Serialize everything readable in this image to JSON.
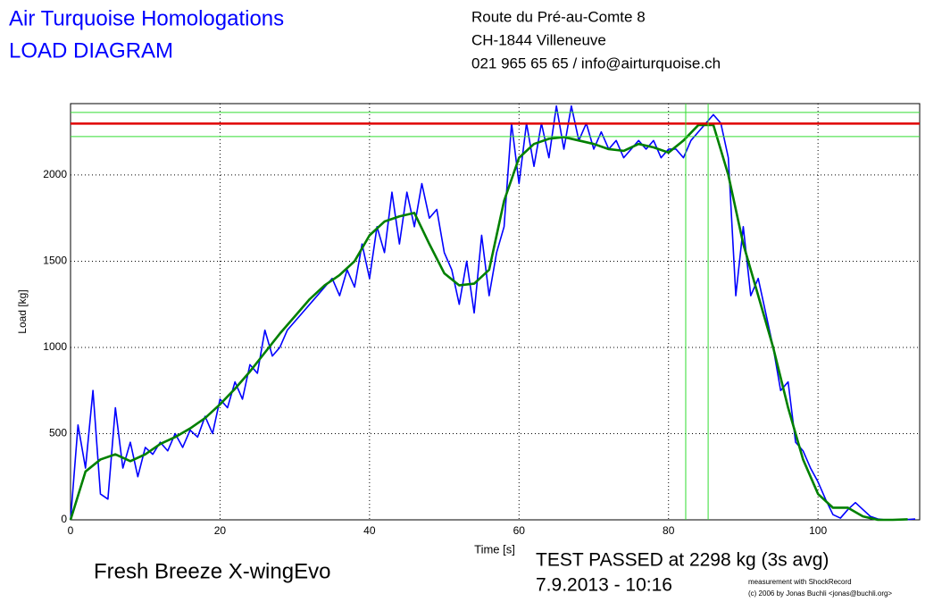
{
  "header": {
    "title": "Air Turquoise Homologations",
    "subtitle": "LOAD DIAGRAM",
    "address": [
      "Route du Pré-au-Comte 8",
      "CH-1844 Villeneuve",
      "021 965 65 65 / info@airturquoise.ch"
    ]
  },
  "chart_data": {
    "type": "line",
    "xlabel": "Time [s]",
    "ylabel": "Load [kg]",
    "xlim": [
      0,
      113.6
    ],
    "ylim": [
      0,
      2414
    ],
    "xticks": [
      0,
      20,
      40,
      60,
      80,
      100
    ],
    "yticks": [
      0,
      500,
      1000,
      1500,
      2000
    ],
    "grid": true,
    "series": [
      {
        "color": "#0000ff",
        "x": [
          0,
          1,
          2,
          3,
          4,
          5,
          6,
          7,
          8,
          9,
          10,
          11,
          12,
          13,
          14,
          15,
          16,
          17,
          18,
          19,
          20,
          21,
          22,
          23,
          24,
          25,
          26,
          27,
          28,
          29,
          30,
          31,
          32,
          33,
          34,
          35,
          36,
          37,
          38,
          39,
          40,
          41,
          42,
          43,
          44,
          45,
          46,
          47,
          48,
          49,
          50,
          51,
          52,
          53,
          54,
          55,
          56,
          57,
          58,
          59,
          60,
          61,
          62,
          63,
          64,
          65,
          66,
          67,
          68,
          69,
          70,
          71,
          72,
          73,
          74,
          75,
          76,
          77,
          78,
          79,
          80,
          81,
          82,
          83,
          84,
          85,
          86,
          87,
          88,
          89,
          90,
          91,
          92,
          93,
          94,
          95,
          96,
          97,
          98,
          99,
          100,
          101,
          102,
          103,
          104,
          105,
          106,
          107,
          108,
          109,
          110,
          111,
          112,
          113
        ],
        "values": [
          0,
          550,
          300,
          750,
          150,
          120,
          650,
          300,
          450,
          250,
          420,
          380,
          450,
          400,
          500,
          420,
          520,
          480,
          600,
          500,
          700,
          650,
          800,
          700,
          900,
          850,
          1100,
          950,
          1000,
          1100,
          1150,
          1200,
          1250,
          1300,
          1350,
          1400,
          1300,
          1450,
          1350,
          1600,
          1400,
          1700,
          1550,
          1900,
          1600,
          1900,
          1700,
          1950,
          1750,
          1800,
          1550,
          1450,
          1250,
          1500,
          1200,
          1650,
          1300,
          1550,
          1700,
          2300,
          1950,
          2300,
          2050,
          2300,
          2100,
          2400,
          2150,
          2400,
          2200,
          2300,
          2150,
          2250,
          2150,
          2200,
          2100,
          2150,
          2200,
          2150,
          2200,
          2100,
          2150,
          2150,
          2100,
          2200,
          2250,
          2300,
          2350,
          2300,
          2100,
          1300,
          1700,
          1300,
          1400,
          1200,
          1000,
          750,
          800,
          450,
          400,
          300,
          220,
          120,
          30,
          10,
          60,
          100,
          60,
          20,
          5,
          0,
          0,
          0,
          2,
          5
        ]
      },
      {
        "color": "#008000",
        "x": [
          0,
          2,
          4,
          6,
          8,
          10,
          12,
          14,
          16,
          18,
          20,
          22,
          24,
          26,
          28,
          30,
          32,
          34,
          36,
          38,
          40,
          42,
          44,
          46,
          48,
          50,
          52,
          54,
          56,
          58,
          60,
          62,
          64,
          66,
          68,
          70,
          72,
          74,
          76,
          78,
          80,
          82,
          84,
          86,
          88,
          90,
          92,
          94,
          96,
          98,
          100,
          102,
          104,
          106,
          108,
          110,
          112
        ],
        "values": [
          0,
          280,
          350,
          380,
          340,
          380,
          440,
          480,
          530,
          590,
          670,
          760,
          860,
          970,
          1080,
          1180,
          1280,
          1360,
          1420,
          1500,
          1650,
          1730,
          1760,
          1780,
          1600,
          1430,
          1360,
          1370,
          1450,
          1850,
          2100,
          2180,
          2210,
          2220,
          2200,
          2180,
          2150,
          2140,
          2180,
          2160,
          2130,
          2200,
          2290,
          2290,
          2000,
          1600,
          1300,
          1000,
          650,
          350,
          150,
          70,
          70,
          20,
          0,
          0,
          3
        ]
      }
    ],
    "hlines": [
      {
        "value": 2298,
        "color": "#e00000"
      },
      {
        "value": 2363,
        "color": "#33dd33"
      },
      {
        "value": 2223,
        "color": "#33dd33"
      }
    ],
    "vlines": [
      {
        "value": 82.3,
        "color": "#33dd33"
      },
      {
        "value": 85.3,
        "color": "#33dd33"
      }
    ]
  },
  "footer": {
    "model": "Fresh Breeze X-wingEvo",
    "result": "TEST PASSED at 2298 kg (3s avg)",
    "date": "7.9.2013 - 10:16",
    "credit": "measurement with ShockRecord",
    "copyright": "(c) 2006 by Jonas Buchli <jonas@buchli.org>"
  }
}
